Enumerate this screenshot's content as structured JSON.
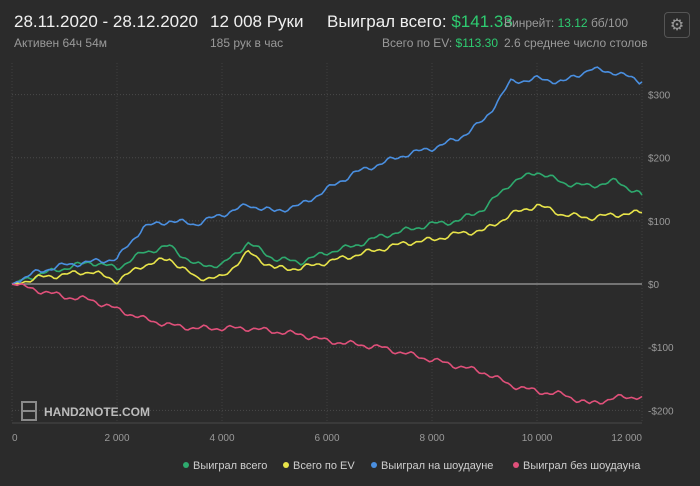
{
  "header": {
    "date_range": "28.11.2020 - 28.12.2020",
    "active": "Активен 64ч 54м",
    "hands": "12 008 Руки",
    "hands_per_hour": "185 рук в час",
    "won_total_label": "Выиграл всего:",
    "won_total_value": "$141.33",
    "ev_total_label": "Всего по EV:",
    "ev_total_value": "$113.30",
    "winrate_label": "Винрейт:",
    "winrate_value": "13.12",
    "winrate_unit": "бб/100",
    "avg_tables": "2.6 среднее число столов",
    "settings_icon": "gear-icon"
  },
  "watermark": {
    "text": "HAND2NOTE.COM"
  },
  "chart_data": {
    "type": "line",
    "title": "",
    "xlabel": "",
    "ylabel": "",
    "xlim": [
      0,
      12000
    ],
    "ylim": [
      -220,
      350
    ],
    "x_ticks": [
      0,
      2000,
      4000,
      6000,
      8000,
      10000,
      12000
    ],
    "x_tick_labels": [
      "0",
      "2 000",
      "4 000",
      "6 000",
      "8 000",
      "10 000",
      "12 000"
    ],
    "y_ticks": [
      300,
      200,
      100,
      0,
      -100,
      -200
    ],
    "y_tick_labels": [
      "$300",
      "$200",
      "$100",
      "$0",
      "-$100",
      "-$200"
    ],
    "grid": true,
    "legend_position": "bottom-right",
    "series": [
      {
        "name": "Выиграл всего",
        "color": "#2eaa6e",
        "x": [
          0,
          500,
          1000,
          1500,
          2000,
          2500,
          3000,
          3500,
          4000,
          4500,
          5000,
          5500,
          6000,
          6500,
          7000,
          7500,
          8000,
          8500,
          9000,
          9500,
          10000,
          10500,
          11000,
          11500,
          12000
        ],
        "y": [
          0,
          15,
          25,
          35,
          25,
          50,
          60,
          30,
          30,
          65,
          40,
          35,
          50,
          60,
          75,
          85,
          95,
          100,
          120,
          160,
          178,
          160,
          155,
          163,
          141
        ]
      },
      {
        "name": "Всего по EV",
        "color": "#e8e44a",
        "x": [
          0,
          500,
          1000,
          1500,
          2000,
          2500,
          3000,
          3500,
          4000,
          4500,
          5000,
          5500,
          6000,
          6500,
          7000,
          7500,
          8000,
          8500,
          9000,
          9500,
          10000,
          10500,
          11000,
          11500,
          12000
        ],
        "y": [
          0,
          10,
          15,
          20,
          5,
          30,
          40,
          10,
          10,
          50,
          25,
          25,
          35,
          45,
          55,
          65,
          70,
          80,
          85,
          110,
          125,
          110,
          105,
          110,
          113
        ]
      },
      {
        "name": "Выиграл на шоудауне",
        "color": "#4a8fe0",
        "x": [
          0,
          500,
          1000,
          1500,
          2000,
          2500,
          3000,
          3500,
          4000,
          4500,
          5000,
          5500,
          6000,
          6500,
          7000,
          7500,
          8000,
          8500,
          9000,
          9500,
          10000,
          10500,
          11000,
          11500,
          12000
        ],
        "y": [
          0,
          20,
          30,
          35,
          40,
          90,
          100,
          95,
          110,
          125,
          115,
          125,
          150,
          175,
          190,
          205,
          215,
          230,
          260,
          320,
          325,
          320,
          340,
          335,
          320
        ]
      },
      {
        "name": "Выиграл без шоудауна",
        "color": "#e0507a",
        "x": [
          0,
          500,
          1000,
          1500,
          2000,
          2500,
          3000,
          3500,
          4000,
          4500,
          5000,
          5500,
          6000,
          6500,
          7000,
          7500,
          8000,
          8500,
          9000,
          9500,
          10000,
          10500,
          11000,
          11500,
          12000
        ],
        "y": [
          0,
          -10,
          -20,
          -25,
          -40,
          -55,
          -65,
          -70,
          -70,
          -70,
          -75,
          -80,
          -90,
          -95,
          -100,
          -110,
          -120,
          -130,
          -140,
          -160,
          -170,
          -175,
          -190,
          -180,
          -178
        ]
      }
    ]
  }
}
